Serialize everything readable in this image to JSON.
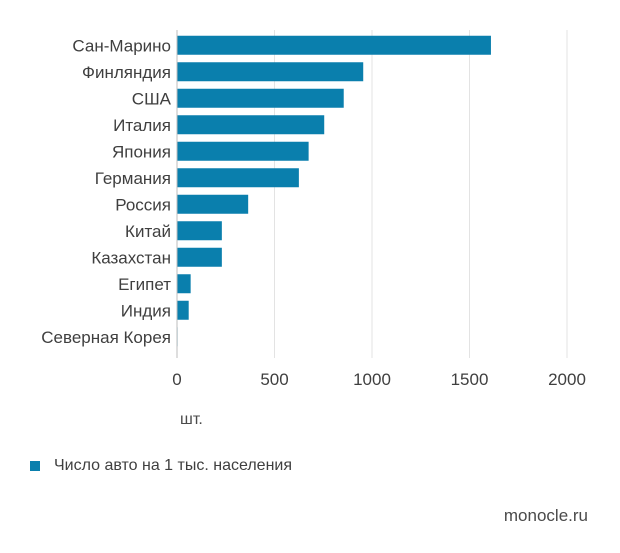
{
  "colors": {
    "bar": "#0a7fad",
    "grid": "#e3e3e3",
    "axis": "#bdbdbd"
  },
  "chart_data": {
    "type": "bar",
    "orientation": "horizontal",
    "title": "",
    "xlabel": "шт.",
    "ylabel": "",
    "categories": [
      "Сан-Марино",
      "Финляндия",
      "США",
      "Италия",
      "Япония",
      "Германия",
      "Россия",
      "Китай",
      "Казахстан",
      "Египет",
      "Индия",
      "Северная Корея"
    ],
    "series": [
      {
        "name": "Число авто на 1 тыс. населения",
        "values": [
          1610,
          955,
          855,
          755,
          675,
          625,
          365,
          230,
          230,
          70,
          60,
          3
        ]
      }
    ],
    "xlim": [
      0,
      2000
    ],
    "xticks": [
      "0",
      "500",
      "1000",
      "1500",
      "2000"
    ],
    "grid": true,
    "legend_position": "bottom-left"
  },
  "legend": {
    "label": "Число авто на 1 тыс. населения"
  },
  "unit": "шт.",
  "source": "monocle.ru"
}
